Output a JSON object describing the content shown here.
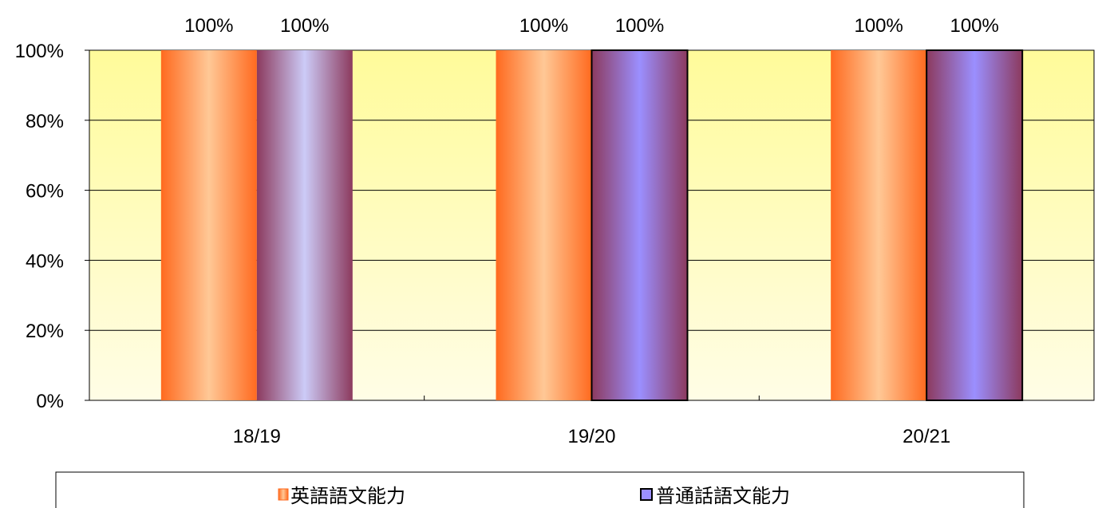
{
  "chart_data": {
    "type": "bar",
    "categories": [
      "18/19",
      "19/20",
      "20/21"
    ],
    "series": [
      {
        "name": "英語語文能力",
        "values": [
          100,
          100,
          100
        ],
        "color": "#FF6A1F"
      },
      {
        "name": "普通話語文能力",
        "values": [
          100,
          100,
          100
        ],
        "color": "#9B8FFF"
      }
    ],
    "data_labels": [
      [
        "100%",
        "100%",
        "100%"
      ],
      [
        "100%",
        "100%",
        "100%"
      ]
    ],
    "ylim": [
      0,
      100
    ],
    "yticks": [
      {
        "value": 0,
        "label": "0%"
      },
      {
        "value": 20,
        "label": "20%"
      },
      {
        "value": 40,
        "label": "40%"
      },
      {
        "value": 60,
        "label": "60%"
      },
      {
        "value": 80,
        "label": "80%"
      },
      {
        "value": 100,
        "label": "100%"
      }
    ],
    "grid": true,
    "legend_position": "bottom",
    "plot_background": [
      "#FFFB9A",
      "#FFFDE6"
    ]
  }
}
